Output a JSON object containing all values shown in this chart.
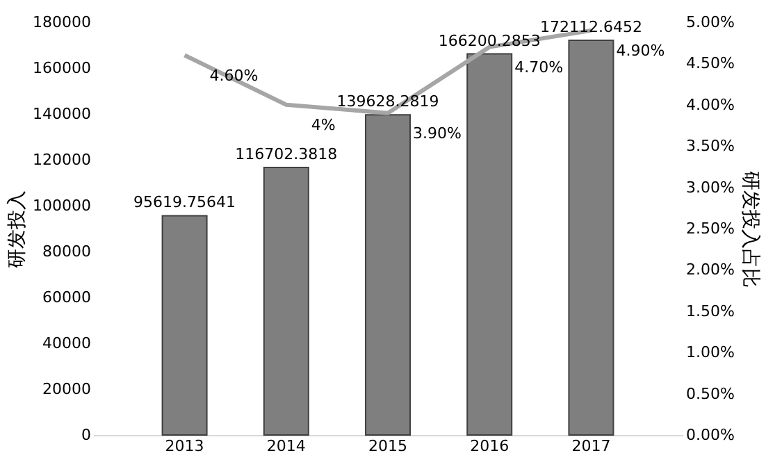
{
  "chart_data": {
    "type": "bar",
    "ylabel": "研发投入",
    "y2label": "研发投入占比",
    "categories": [
      "2013",
      "2014",
      "2015",
      "2016",
      "2017"
    ],
    "series": [
      {
        "color": "#7f7f7f",
        "values": [
          95619.75641,
          116702.3818,
          139628.2819,
          166200.2853,
          172112.6452
        ],
        "data_labels": true
      },
      {
        "type": "line",
        "axis": "y2",
        "color": "#a6a6a6",
        "values": [
          4.6,
          4.0,
          3.9,
          4.7,
          4.9
        ],
        "value_labels": [
          "4.60%",
          "4%",
          "3.90%",
          "4.70%",
          "4.90%"
        ]
      }
    ],
    "ylim": [
      0,
      180000
    ],
    "yticks": [
      0,
      20000,
      40000,
      60000,
      80000,
      100000,
      120000,
      140000,
      160000,
      180000
    ],
    "y2lim": [
      0,
      5
    ],
    "y2ticks": [
      {
        "value": 0,
        "label": "0.00%"
      },
      {
        "value": 0.5,
        "label": "0.50%"
      },
      {
        "value": 1,
        "label": "1.00%"
      },
      {
        "value": 1.5,
        "label": "1.50%"
      },
      {
        "value": 2,
        "label": "2.00%"
      },
      {
        "value": 2.5,
        "label": "2.50%"
      },
      {
        "value": 3,
        "label": "3.00%"
      },
      {
        "value": 3.5,
        "label": "3.50%"
      },
      {
        "value": 4,
        "label": "4.00%"
      },
      {
        "value": 4.5,
        "label": "4.50%"
      },
      {
        "value": 5,
        "label": "5.00%"
      }
    ],
    "grid": false,
    "marker": "none",
    "line_style": "solid"
  }
}
